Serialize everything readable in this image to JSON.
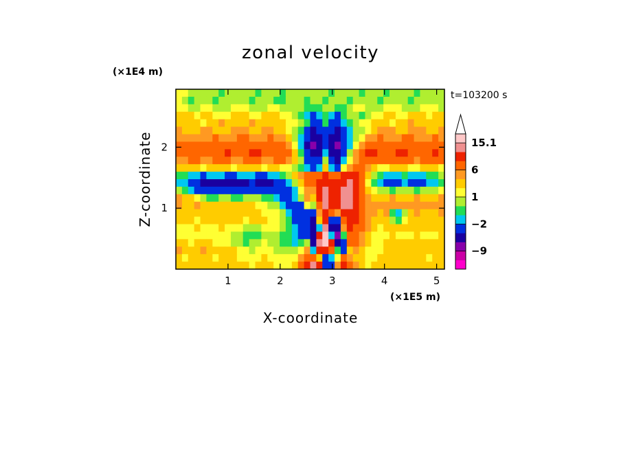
{
  "chart_data": {
    "type": "heatmap",
    "title": "zonal velocity",
    "xlabel": "X-coordinate",
    "ylabel": "Z-coordinate",
    "x_unit": "(×1E5 m)",
    "y_unit": "(×1E4 m)",
    "time_label": "t=103200 s",
    "xlim": [
      0,
      5.15
    ],
    "ylim": [
      0,
      2.95
    ],
    "x_ticks": [
      1,
      2,
      3,
      4,
      5
    ],
    "y_ticks": [
      1,
      2
    ],
    "colorbar": {
      "labels": [
        "15.1",
        "6",
        "1",
        "-2",
        "-9"
      ],
      "label_values": [
        15.1,
        6,
        1,
        -2,
        -9
      ],
      "levels": [
        -15,
        -12,
        -9,
        -6,
        -3,
        -2,
        -1,
        0,
        1,
        2,
        3,
        6,
        9,
        12,
        15.1
      ],
      "colors": [
        "#ff00cc",
        "#cc00a6",
        "#8800aa",
        "#1a00a0",
        "#0030e0",
        "#00c8f0",
        "#22dd55",
        "#b0ee30",
        "#ffff33",
        "#ffcc00",
        "#ff9922",
        "#ff6600",
        "#ee2200",
        "#f09090",
        "#ffc8c8"
      ],
      "extend_max": true
    },
    "grid_cols": 44,
    "grid_rows": 24,
    "grid_x_range": [
      0,
      5.15
    ],
    "grid_y_range": [
      0,
      2.95
    ],
    "values": [
      [
        0.5,
        0.4,
        -0.5,
        -0.8,
        -0.4,
        -0.2,
        -0.8,
        -1.2,
        -0.9,
        -0.5,
        -0.2,
        -0.3,
        -0.8,
        -1.1,
        -0.6,
        -0.4,
        -0.9,
        -1.3,
        -1.0,
        -0.6,
        -0.5,
        -1.0,
        -0.7,
        -0.9,
        -0.8,
        -1.1,
        -0.8,
        -0.3,
        -0.4,
        -0.9,
        -1.1,
        -0.7,
        -0.5,
        -0.8,
        -1.3,
        -1.0,
        -0.4,
        -0.1,
        -0.6,
        -1.1,
        -0.9,
        -0.5,
        -0.3,
        -0.5
      ],
      [
        0.3,
        -0.4,
        -1.2,
        -0.9,
        -0.2,
        -0.6,
        -1.2,
        -0.8,
        -0.3,
        -0.1,
        -0.3,
        -0.9,
        -1.2,
        -0.7,
        -0.3,
        -0.5,
        -1.1,
        -1.4,
        -0.8,
        -0.3,
        -0.6,
        -1.2,
        -0.8,
        -0.4,
        -1.1,
        -0.6,
        -0.2,
        -0.6,
        -1.1,
        -0.8,
        -0.2,
        -0.4,
        -1.0,
        -1.2,
        -0.7,
        -0.3,
        -0.5,
        -0.9,
        -1.3,
        -0.8,
        -0.2,
        -0.4,
        -0.8,
        -0.6
      ],
      [
        0.9,
        0.6,
        -0.3,
        -0.5,
        0.3,
        0.8,
        -0.2,
        -0.8,
        -0.4,
        0.2,
        0.6,
        0.1,
        -0.6,
        -0.9,
        -0.2,
        0.5,
        0.4,
        -0.3,
        -0.9,
        -0.5,
        -0.7,
        -1.2,
        -1.5,
        -1.1,
        -1.0,
        -0.8,
        -1.2,
        -1.4,
        -0.6,
        0.1,
        0.4,
        -0.2,
        -0.8,
        -0.4,
        0.3,
        0.7,
        0.2,
        -0.5,
        -0.7,
        -0.1,
        0.6,
        0.8,
        0.2,
        -0.3
      ],
      [
        1.4,
        1.8,
        1.2,
        0.6,
        1.0,
        1.5,
        0.9,
        0.3,
        0.7,
        1.6,
        1.9,
        1.2,
        0.5,
        0.8,
        1.5,
        1.7,
        1.0,
        0.4,
        0.1,
        -0.6,
        -1.4,
        -2.5,
        -4.5,
        -3.0,
        -1.2,
        -2.8,
        -3.4,
        -1.5,
        -0.2,
        -0.6,
        -1.2,
        -0.5,
        0.2,
        0.8,
        1.4,
        1.1,
        0.5,
        0.9,
        1.6,
        1.9,
        1.3,
        0.7,
        1.0,
        1.5
      ],
      [
        1.2,
        1.6,
        1.9,
        1.4,
        0.8,
        1.1,
        1.7,
        2.2,
        1.6,
        1.0,
        1.3,
        1.8,
        2.0,
        1.5,
        1.1,
        1.4,
        1.7,
        1.2,
        0.6,
        0.2,
        -0.8,
        -2.0,
        -5.0,
        -4.2,
        -2.0,
        -4.4,
        -5.2,
        -2.8,
        -1.4,
        -0.5,
        0.0,
        0.6,
        1.2,
        1.6,
        1.3,
        0.9,
        1.2,
        1.8,
        2.1,
        1.6,
        1.1,
        1.4,
        1.9,
        1.7
      ],
      [
        2.0,
        1.8,
        1.4,
        1.6,
        2.2,
        2.5,
        1.9,
        1.5,
        1.8,
        2.4,
        2.6,
        2.0,
        1.6,
        1.9,
        2.5,
        2.3,
        1.8,
        1.2,
        0.5,
        -0.5,
        -1.8,
        -3.5,
        -6.2,
        -5.5,
        -3.2,
        -5.6,
        -6.6,
        -4.0,
        -2.2,
        -1.0,
        -0.2,
        0.8,
        1.5,
        2.2,
        2.6,
        2.0,
        1.5,
        1.8,
        2.4,
        2.7,
        2.1,
        1.6,
        1.9,
        2.3
      ],
      [
        2.2,
        2.6,
        2.4,
        2.0,
        2.3,
        2.8,
        3.1,
        2.5,
        2.1,
        2.4,
        3.0,
        3.3,
        2.7,
        2.2,
        2.6,
        3.1,
        2.8,
        2.1,
        1.2,
        -0.2,
        -2.5,
        -5.5,
        -8.5,
        -7.2,
        -4.5,
        -7.8,
        -8.8,
        -5.6,
        -2.8,
        -0.8,
        0.8,
        2.0,
        2.6,
        3.0,
        2.6,
        2.2,
        2.5,
        3.0,
        3.4,
        2.8,
        2.3,
        2.6,
        3.0,
        2.7
      ],
      [
        3.2,
        3.6,
        4.0,
        3.8,
        3.2,
        3.5,
        4.2,
        4.6,
        4.0,
        3.4,
        3.7,
        4.4,
        4.8,
        4.1,
        3.6,
        3.9,
        4.3,
        3.4,
        2.0,
        0.5,
        -2.6,
        -6.5,
        -9.5,
        -8.0,
        -4.0,
        -8.5,
        -9.8,
        -6.0,
        -2.2,
        0.5,
        2.8,
        4.2,
        4.6,
        4.2,
        3.8,
        4.1,
        4.5,
        4.9,
        4.3,
        3.8,
        4.1,
        4.6,
        4.4,
        3.9
      ],
      [
        4.0,
        4.5,
        5.0,
        5.4,
        4.8,
        4.3,
        4.8,
        5.6,
        6.2,
        5.4,
        4.7,
        5.2,
        6.0,
        6.4,
        5.6,
        4.9,
        5.5,
        5.2,
        3.5,
        1.2,
        -1.8,
        -5.5,
        -8.5,
        -7.5,
        -2.5,
        -7.8,
        -9.0,
        -4.5,
        -0.2,
        2.8,
        5.2,
        6.3,
        6.0,
        5.4,
        5.0,
        5.6,
        6.4,
        6.8,
        5.9,
        5.3,
        5.0,
        5.7,
        6.1,
        5.2
      ],
      [
        2.5,
        2.9,
        3.2,
        3.0,
        2.6,
        2.8,
        3.4,
        3.8,
        3.2,
        2.7,
        2.9,
        3.5,
        3.7,
        3.1,
        2.6,
        2.9,
        3.3,
        3.0,
        2.2,
        1.0,
        -1.0,
        -3.2,
        -6.0,
        -5.2,
        -1.0,
        -5.5,
        -6.5,
        -2.2,
        0.8,
        2.6,
        3.6,
        4.0,
        3.7,
        3.2,
        3.4,
        3.9,
        4.3,
        3.8,
        3.2,
        2.9,
        3.3,
        3.8,
        3.5,
        3.0
      ],
      [
        1.0,
        1.4,
        1.7,
        1.3,
        0.8,
        1.1,
        1.6,
        1.9,
        1.4,
        0.9,
        1.2,
        1.7,
        1.8,
        1.3,
        0.8,
        1.0,
        1.3,
        0.9,
        0.2,
        -0.8,
        -2.0,
        -3.0,
        -3.8,
        -2.5,
        1.0,
        -2.6,
        -3.2,
        0.2,
        2.2,
        3.2,
        3.0,
        2.0,
        1.2,
        0.6,
        0.9,
        1.3,
        1.6,
        1.1,
        0.6,
        0.8,
        1.2,
        1.5,
        1.1,
        0.7
      ],
      [
        -1.2,
        -1.6,
        -2.2,
        -2.8,
        -3.2,
        -3.0,
        -2.5,
        -2.9,
        -3.4,
        -3.1,
        -2.6,
        -2.3,
        -2.7,
        -3.2,
        -3.5,
        -3.0,
        -2.4,
        -1.5,
        -0.4,
        1.0,
        2.6,
        4.0,
        3.0,
        5.2,
        6.8,
        5.4,
        4.2,
        6.5,
        7.2,
        6.0,
        3.6,
        1.4,
        -0.6,
        -1.6,
        -2.2,
        -2.6,
        -2.2,
        -1.8,
        -2.4,
        -2.9,
        -2.6,
        -2.0,
        -1.4,
        -0.9
      ],
      [
        -2.2,
        -3.0,
        -4.2,
        -5.6,
        -6.8,
        -7.5,
        -7.2,
        -6.6,
        -7.0,
        -7.6,
        -7.3,
        -6.5,
        -6.0,
        -6.4,
        -7.0,
        -6.8,
        -6.0,
        -4.8,
        -3.0,
        -0.8,
        1.8,
        3.8,
        3.0,
        6.5,
        8.8,
        7.0,
        6.2,
        8.4,
        9.2,
        7.4,
        3.8,
        0.6,
        -1.8,
        -2.6,
        -3.4,
        -4.0,
        -3.6,
        -3.0,
        -3.3,
        -3.8,
        -3.5,
        -2.8,
        -2.2,
        -1.6
      ],
      [
        -0.5,
        -1.2,
        -2.2,
        -3.5,
        -4.8,
        -5.5,
        -5.2,
        -4.6,
        -5.0,
        -5.6,
        -5.3,
        -4.5,
        -4.0,
        -4.4,
        -5.0,
        -5.2,
        -5.4,
        -5.0,
        -4.2,
        -2.8,
        0.6,
        2.8,
        2.2,
        6.2,
        9.5,
        7.8,
        7.6,
        9.8,
        10.5,
        8.2,
        4.8,
        1.8,
        0.2,
        -0.4,
        -0.9,
        -1.2,
        -1.0,
        -0.6,
        -0.9,
        -1.3,
        -1.0,
        -0.5,
        -0.2,
        0.1
      ],
      [
        2.0,
        1.6,
        1.2,
        0.4,
        -0.8,
        -1.6,
        -1.2,
        -0.6,
        -1.0,
        -1.6,
        -1.3,
        -0.7,
        -0.2,
        -0.6,
        -1.2,
        -2.0,
        -2.8,
        -3.6,
        -4.0,
        -3.0,
        -0.4,
        2.6,
        1.8,
        6.8,
        10.2,
        8.4,
        8.2,
        10.4,
        11.0,
        8.8,
        5.2,
        2.6,
        1.8,
        1.4,
        1.6,
        2.0,
        1.8,
        1.3,
        1.6,
        2.2,
        1.9,
        1.4,
        1.7,
        2.2
      ],
      [
        2.2,
        1.9,
        1.8,
        2.0,
        1.7,
        1.4,
        1.6,
        1.9,
        1.6,
        1.2,
        1.3,
        1.5,
        1.2,
        0.8,
        0.4,
        -0.2,
        -1.0,
        -2.2,
        -3.8,
        -4.6,
        -3.2,
        0.4,
        -0.8,
        5.2,
        9.0,
        6.6,
        6.0,
        9.2,
        10.2,
        8.0,
        5.0,
        2.8,
        2.2,
        2.0,
        2.3,
        2.6,
        2.4,
        2.0,
        2.2,
        2.7,
        2.4,
        2.0,
        2.3,
        2.6
      ],
      [
        1.8,
        1.5,
        1.2,
        1.4,
        1.7,
        1.5,
        1.2,
        1.4,
        1.6,
        1.3,
        1.1,
        1.3,
        1.5,
        1.2,
        0.9,
        0.6,
        0.2,
        -0.6,
        -2.2,
        -4.0,
        -5.2,
        -3.4,
        -4.5,
        2.8,
        7.4,
        3.4,
        2.2,
        6.2,
        8.6,
        7.0,
        4.6,
        2.6,
        2.0,
        1.8,
        2.2,
        -1.8,
        -2.6,
        -0.4,
        1.8,
        2.2,
        1.9,
        1.6,
        1.9,
        2.2
      ],
      [
        1.6,
        1.4,
        1.1,
        0.8,
        1.2,
        1.5,
        1.3,
        1.0,
        1.2,
        1.4,
        1.2,
        0.9,
        1.1,
        1.3,
        1.0,
        0.7,
        0.3,
        -0.4,
        -1.6,
        -3.6,
        -5.4,
        -5.0,
        -7.0,
        1.6,
        8.2,
        -3.6,
        -4.8,
        4.4,
        8.0,
        6.6,
        4.0,
        2.2,
        1.6,
        1.4,
        1.8,
        -0.8,
        -1.4,
        0.6,
        1.6,
        1.9,
        1.6,
        1.3,
        1.5,
        1.8
      ],
      [
        0.8,
        0.6,
        0.9,
        1.2,
        0.9,
        0.6,
        0.8,
        1.1,
        0.9,
        0.6,
        0.3,
        -0.2,
        -1.0,
        -0.6,
        0.2,
        0.5,
        0.2,
        -0.6,
        -1.4,
        -2.8,
        -4.5,
        -5.2,
        -8.2,
        -3.0,
        10.0,
        -8.0,
        -7.5,
        2.6,
        7.2,
        5.8,
        3.6,
        2.0,
        1.2,
        0.9,
        1.2,
        1.6,
        1.4,
        1.0,
        1.3,
        1.6,
        1.3,
        1.0,
        1.2,
        1.5
      ],
      [
        0.2,
        0.5,
        0.8,
        0.5,
        0.2,
        0.5,
        0.9,
        0.6,
        0.2,
        -0.2,
        -0.6,
        -1.2,
        -1.6,
        -1.2,
        -0.6,
        -0.2,
        -0.6,
        -1.2,
        -1.8,
        -2.8,
        -3.6,
        -3.2,
        -9.0,
        6.5,
        12.0,
        -2.5,
        -9.5,
        -1.5,
        5.8,
        4.8,
        2.8,
        1.6,
        0.8,
        0.5,
        0.9,
        1.2,
        0.9,
        0.6,
        0.9,
        1.2,
        0.9,
        0.6,
        0.9,
        1.2
      ],
      [
        1.5,
        1.2,
        0.9,
        1.2,
        1.5,
        1.2,
        0.8,
        0.6,
        0.3,
        -0.2,
        -0.8,
        -1.4,
        -1.0,
        -0.4,
        0.2,
        -0.2,
        -0.8,
        -1.4,
        -2.0,
        -2.2,
        -1.6,
        -0.4,
        -7.5,
        10.0,
        14.5,
        8.0,
        -8.0,
        -5.0,
        3.2,
        3.6,
        2.2,
        1.2,
        0.6,
        0.9,
        1.3,
        1.6,
        1.3,
        1.0,
        1.3,
        1.6,
        1.3,
        1.0,
        1.2,
        1.5
      ],
      [
        2.2,
        1.8,
        1.5,
        1.8,
        2.0,
        1.6,
        1.3,
        1.5,
        1.9,
        1.5,
        0.8,
        0.2,
        -0.4,
        0.2,
        0.8,
        0.4,
        -0.2,
        -0.8,
        -1.0,
        -0.4,
        0.6,
        2.2,
        -3.0,
        6.0,
        7.2,
        4.0,
        -2.0,
        -3.5,
        1.2,
        2.0,
        1.6,
        0.8,
        0.5,
        0.9,
        1.4,
        1.8,
        1.5,
        1.2,
        1.6,
        1.9,
        1.6,
        1.3,
        1.6,
        1.9
      ],
      [
        1.2,
        0.9,
        1.3,
        1.7,
        1.4,
        1.0,
        0.8,
        1.2,
        1.6,
        1.3,
        0.9,
        0.6,
        0.3,
        0.7,
        1.1,
        0.8,
        0.4,
        0.1,
        0.3,
        0.9,
        2.2,
        5.0,
        3.8,
        1.5,
        -3.5,
        -3.0,
        0.6,
        4.0,
        2.8,
        1.6,
        1.0,
        0.6,
        0.8,
        1.3,
        1.8,
        1.5,
        1.1,
        1.5,
        1.8,
        1.5,
        1.1,
        0.8,
        1.2,
        1.6
      ],
      [
        1.4,
        1.1,
        1.5,
        1.8,
        1.5,
        1.1,
        1.3,
        1.7,
        1.9,
        1.5,
        1.2,
        1.0,
        0.9,
        1.2,
        1.5,
        1.3,
        0.9,
        0.6,
        0.8,
        1.4,
        3.2,
        6.8,
        9.0,
        7.0,
        -4.5,
        -6.0,
        2.0,
        6.0,
        4.0,
        2.0,
        1.2,
        0.9,
        1.1,
        1.5,
        1.9,
        1.6,
        1.3,
        1.6,
        1.9,
        1.6,
        1.3,
        1.1,
        1.4,
        1.7
      ]
    ]
  }
}
